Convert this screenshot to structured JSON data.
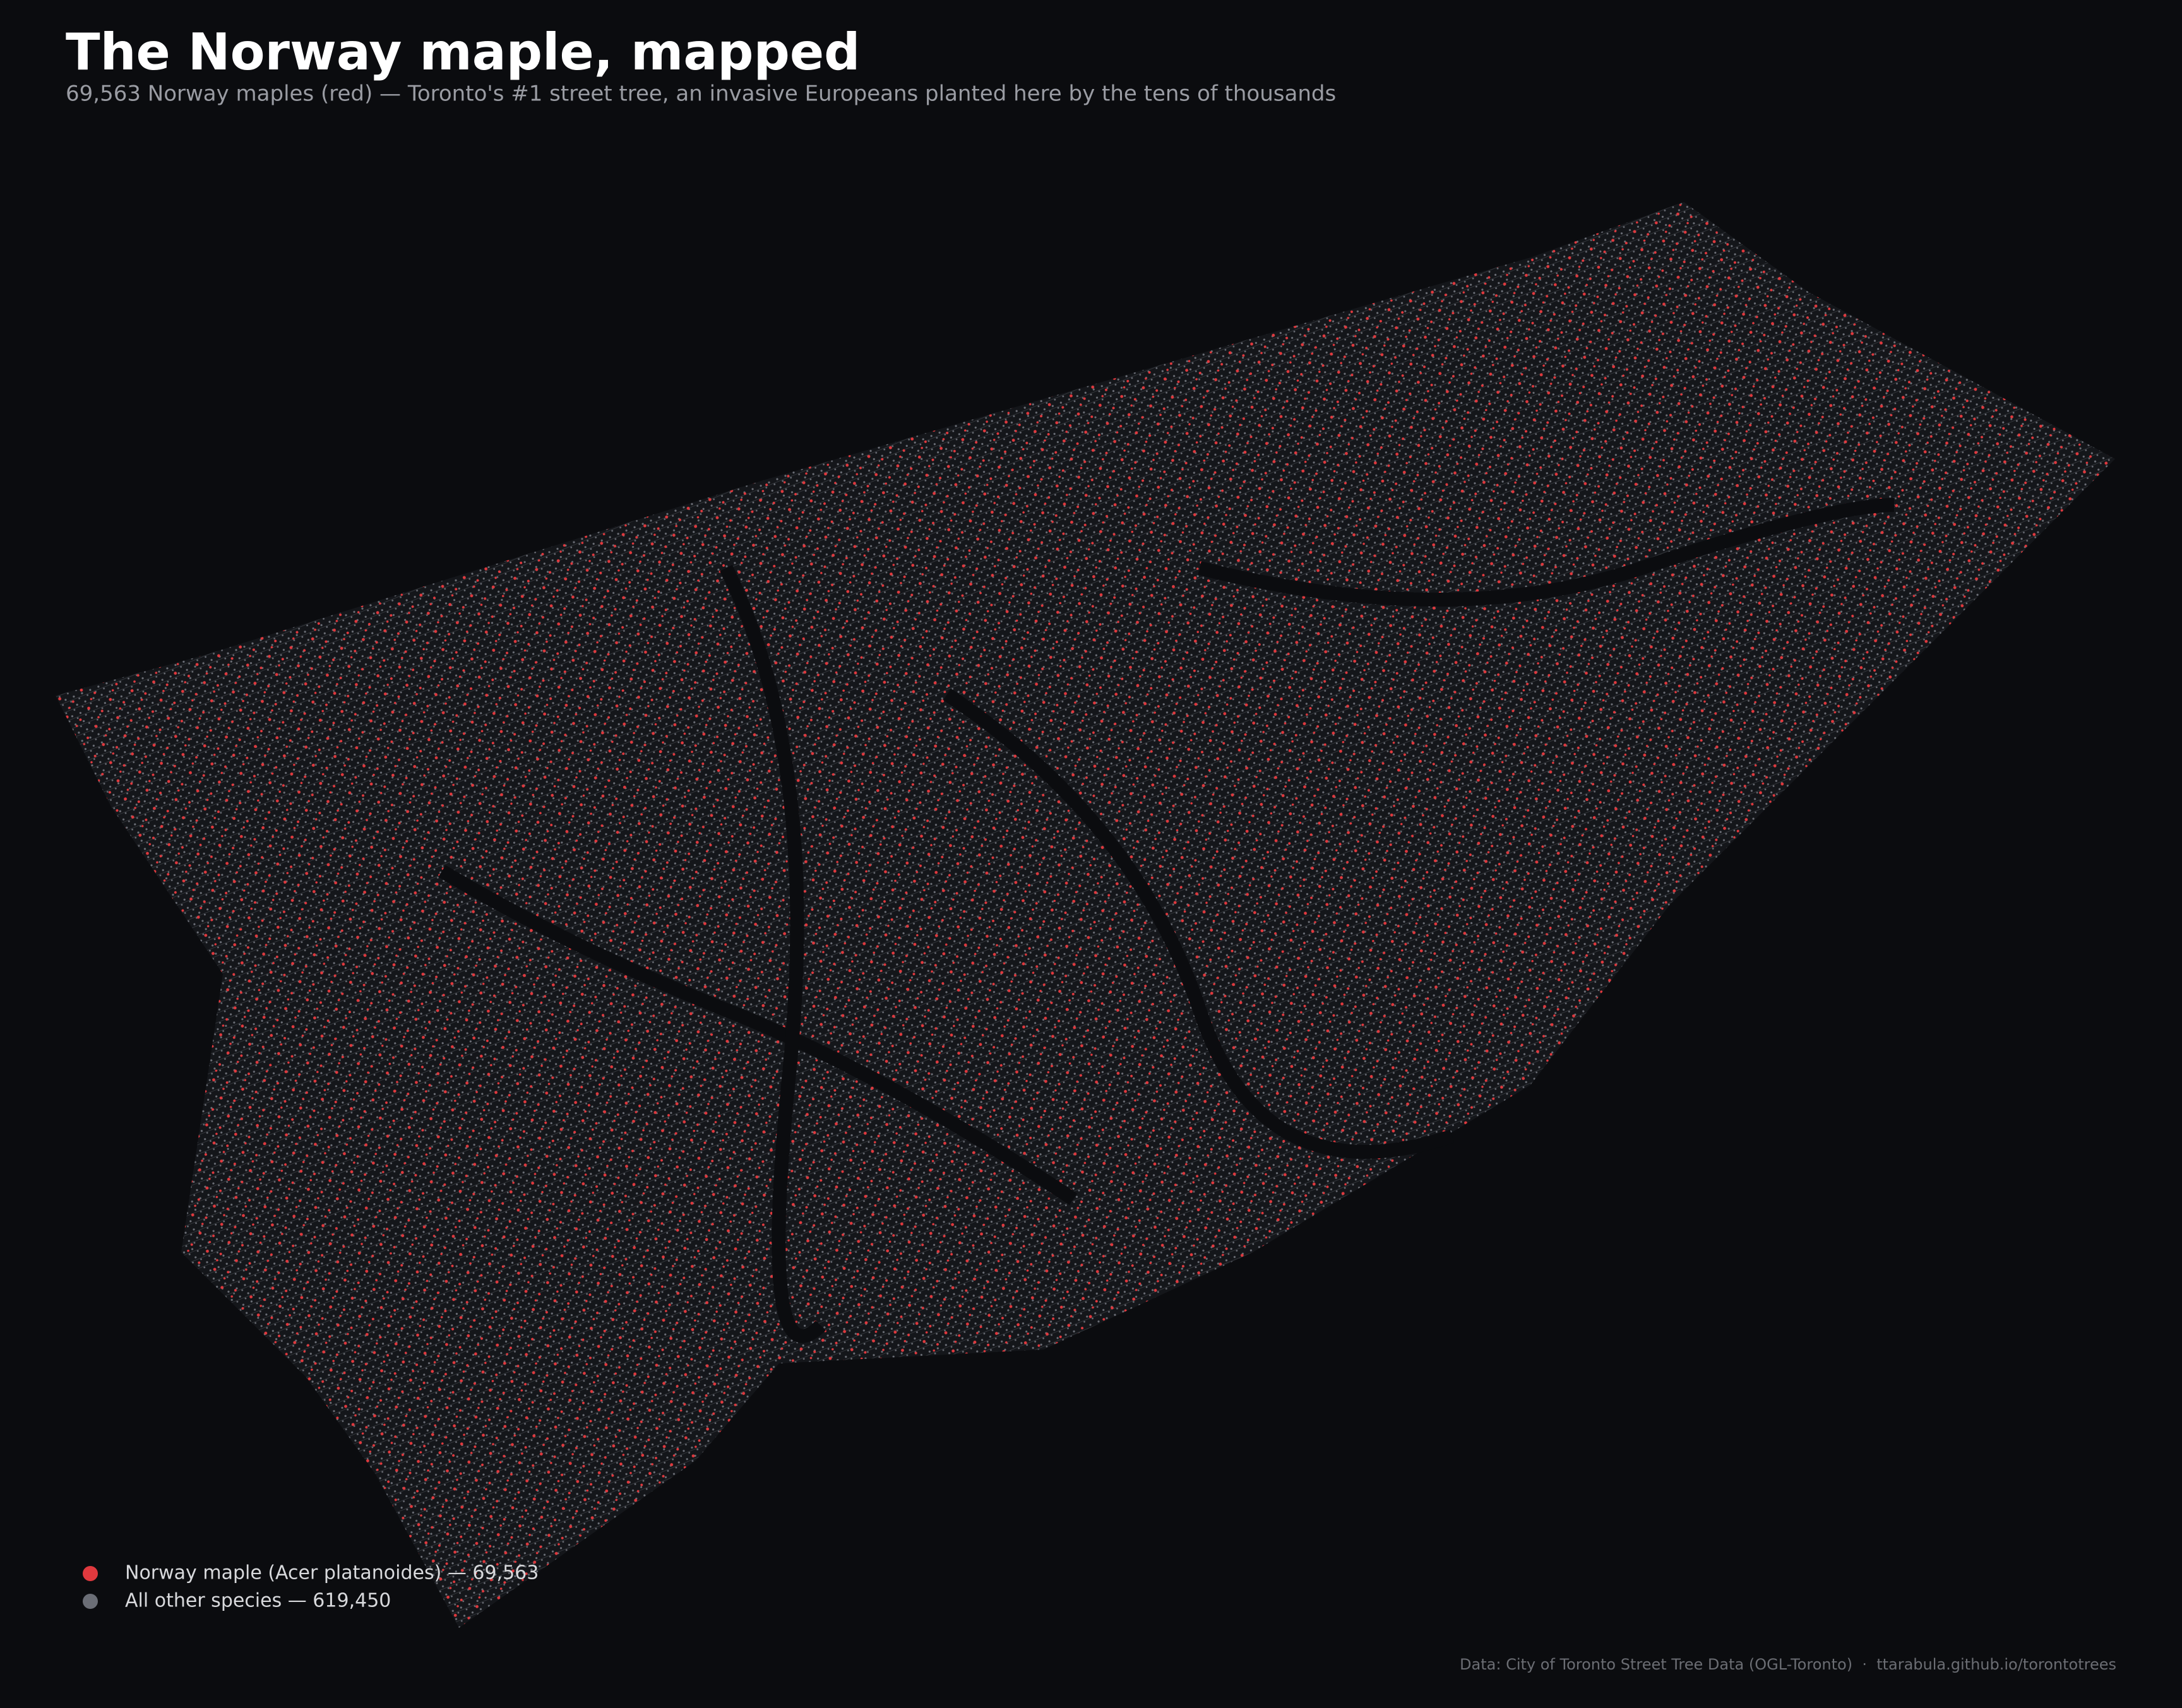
{
  "header": {
    "title": "The Norway maple, mapped",
    "subtitle": "69,563 Norway maples (red) — Toronto's #1 street tree, an invasive Europeans planted here by the tens of thousands"
  },
  "legend": [
    {
      "label": "Norway maple (Acer platanoides) — 69,563",
      "color": "#e0393e"
    },
    {
      "label": "All other species — 619,450",
      "color": "#6b6e76"
    }
  ],
  "source": "Data: City of Toronto Street Tree Data (OGL-Toronto)  ·  ttarabula.github.io/torontotrees"
}
